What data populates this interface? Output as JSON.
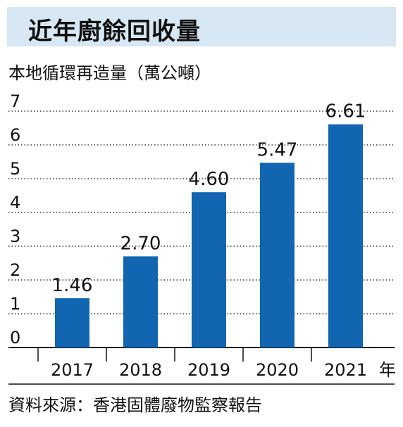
{
  "title": "近年廚餘回收量",
  "source": "資料來源：香港固體廢物監察報告",
  "colors": {
    "bar": "#1265b1",
    "title_bg": "#d7e7f3",
    "grid": "#333333"
  },
  "chart_data": {
    "type": "bar",
    "title": "近年廚餘回收量",
    "ylabel": "本地循環再造量（萬公噸）",
    "xlabel": "年",
    "categories": [
      "2017",
      "2018",
      "2019",
      "2020",
      "2021"
    ],
    "values": [
      1.46,
      2.7,
      4.6,
      5.47,
      6.61
    ],
    "value_labels": [
      "1.46",
      "2.70",
      "4.60",
      "5.47",
      "6.61"
    ],
    "yticks": [
      "0",
      "1",
      "2",
      "3",
      "4",
      "5",
      "6",
      "7"
    ],
    "ylim": [
      0,
      7
    ],
    "grid": "dotted horizontal"
  }
}
